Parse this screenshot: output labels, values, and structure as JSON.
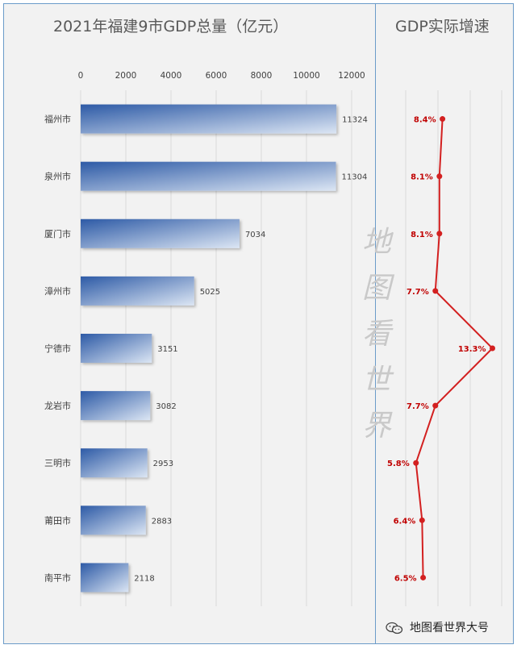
{
  "chart_data": [
    {
      "type": "bar",
      "orientation": "horizontal",
      "title": "2021年福建9市GDP总量（亿元）",
      "categories": [
        "福州市",
        "泉州市",
        "厦门市",
        "漳州市",
        "宁德市",
        "龙岩市",
        "三明市",
        "莆田市",
        "南平市"
      ],
      "values": [
        11324,
        11304,
        7034,
        5025,
        3151,
        3082,
        2953,
        2883,
        2118
      ],
      "xticks": [
        "0",
        "2000",
        "4000",
        "6000",
        "8000",
        "10000",
        "12000"
      ],
      "xlim": [
        0,
        12000
      ],
      "grid": true,
      "colors": {
        "bar_light": "#dce6f4",
        "bar_dark": "#2d5aa6"
      }
    },
    {
      "type": "line",
      "title": "GDP实际增速",
      "categories": [
        "福州市",
        "泉州市",
        "厦门市",
        "漳州市",
        "宁德市",
        "龙岩市",
        "三明市",
        "莆田市",
        "南平市"
      ],
      "values": [
        8.4,
        8.1,
        8.1,
        7.7,
        13.3,
        7.7,
        5.8,
        6.4,
        6.5
      ],
      "labels": [
        "8.4%",
        "8.1%",
        "8.1%",
        "7.7%",
        "13.3%",
        "7.7%",
        "5.8%",
        "6.4%",
        "6.5%"
      ],
      "grid": true,
      "colors": {
        "line": "#d32020"
      }
    }
  ],
  "watermark": [
    "地",
    "图",
    "看",
    "世",
    "界"
  ],
  "footer": {
    "text": "地图看世界大号",
    "icon": "wechat-icon"
  }
}
